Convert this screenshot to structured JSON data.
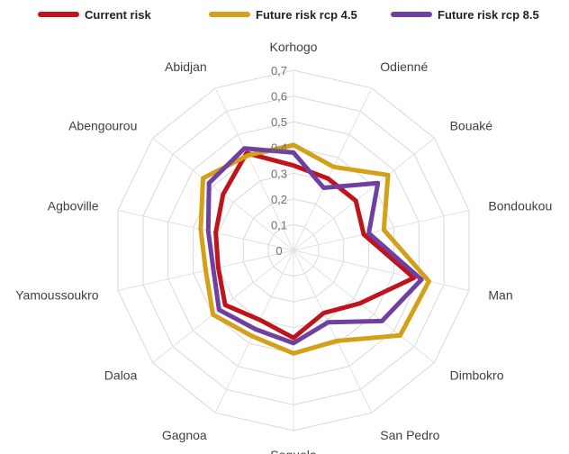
{
  "chart_data": {
    "type": "radar",
    "categories": [
      "Korhogo",
      "Odienné",
      "Bouaké",
      "Bondoukou",
      "Man",
      "Dimbokro",
      "San Pedro",
      "Seguela",
      "Gagnoa",
      "Daloa",
      "Yamoussoukro",
      "Agboville",
      "Abengourou",
      "Abidjan"
    ],
    "ticks": [
      "0",
      "0,1",
      "0,2",
      "0,3",
      "0,4",
      "0,5",
      "0,6",
      "0,7"
    ],
    "rlim": [
      0,
      0.7
    ],
    "grid": true,
    "legend_position": "top",
    "series": [
      {
        "name": "Current risk",
        "color": "#c0141c",
        "values": [
          0.33,
          0.31,
          0.31,
          0.28,
          0.48,
          0.33,
          0.27,
          0.34,
          0.3,
          0.34,
          0.3,
          0.31,
          0.35,
          0.42
        ]
      },
      {
        "name": "Future risk rcp 4.5",
        "color": "#d4a017",
        "values": [
          0.41,
          0.36,
          0.47,
          0.36,
          0.54,
          0.53,
          0.39,
          0.4,
          0.37,
          0.4,
          0.35,
          0.37,
          0.45,
          0.41
        ]
      },
      {
        "name": "Future risk rcp 8.5",
        "color": "#7040a0",
        "values": [
          0.38,
          0.27,
          0.42,
          0.3,
          0.51,
          0.44,
          0.31,
          0.36,
          0.34,
          0.37,
          0.32,
          0.34,
          0.42,
          0.44
        ]
      }
    ]
  }
}
